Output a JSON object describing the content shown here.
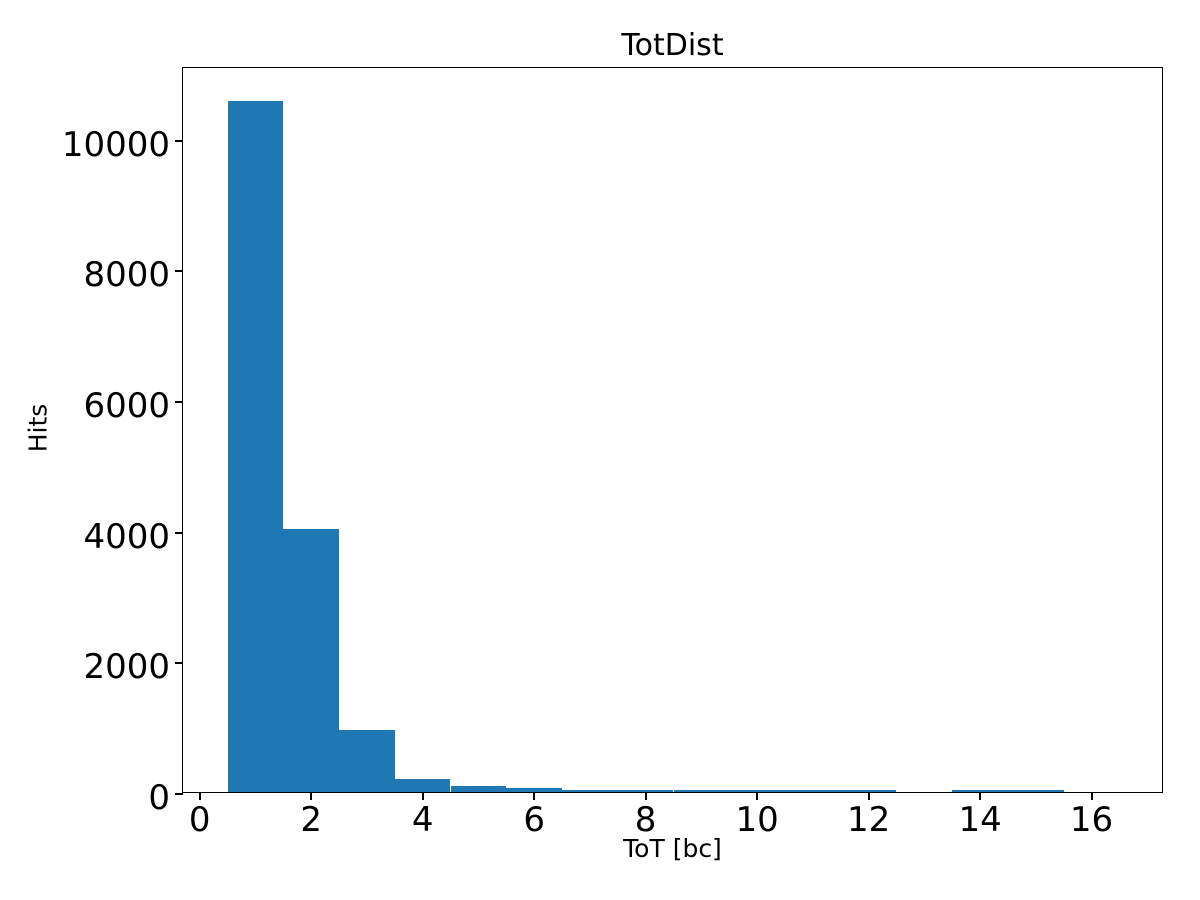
{
  "chart_data": {
    "type": "bar",
    "subtype": "histogram",
    "title": "TotDist",
    "xlabel": "ToT [bc]",
    "ylabel": "Hits",
    "bar_color": "#1f77b4",
    "grid": false,
    "legend": null,
    "bin_edges": [
      0.5,
      1.5,
      2.5,
      3.5,
      4.5,
      5.5,
      6.5,
      7.5,
      8.5,
      9.5,
      10.5,
      11.5,
      12.5,
      13.5,
      14.5,
      15.5,
      16.5
    ],
    "counts": [
      10580,
      4020,
      950,
      200,
      100,
      60,
      30,
      30,
      30,
      30,
      30,
      30,
      0,
      28,
      28,
      0
    ],
    "xlim": [
      -0.3,
      17.3
    ],
    "ylim": [
      0,
      11110
    ],
    "xticks": [
      0,
      2,
      4,
      6,
      8,
      10,
      12,
      14,
      16
    ],
    "xtick_labels": [
      "0",
      "2",
      "4",
      "6",
      "8",
      "10",
      "12",
      "14",
      "16"
    ],
    "yticks": [
      0,
      2000,
      4000,
      6000,
      8000,
      10000
    ],
    "ytick_labels": [
      "0",
      "2000",
      "4000",
      "6000",
      "8000",
      "10000"
    ]
  }
}
